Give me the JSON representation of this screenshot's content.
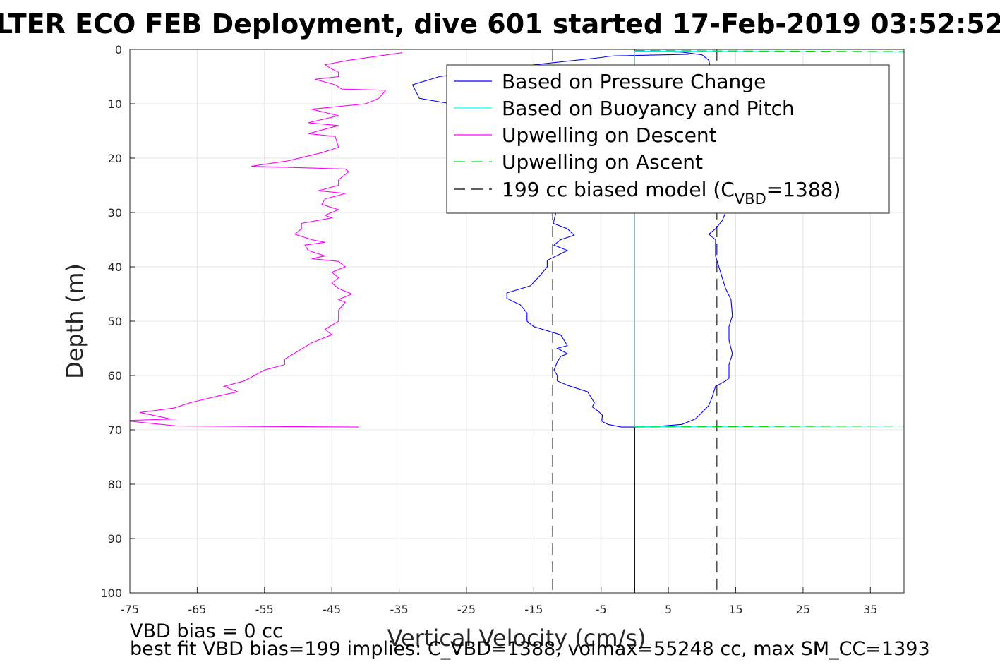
{
  "chart_data": {
    "type": "line",
    "title": "LTER ECO FEB Deployment, dive 601 started 17-Feb-2019 03:52:52",
    "xlabel": "Vertical Velocity (cm/s)",
    "ylabel": "Depth (m)",
    "xlim": [
      -75,
      40
    ],
    "ylim": [
      0,
      100
    ],
    "y_reversed": true,
    "grid": true,
    "xticks": [
      "-75",
      "-65",
      "-55",
      "-45",
      "-35",
      "-25",
      "-15",
      "-5",
      "5",
      "15",
      "25",
      "35"
    ],
    "yticks": [
      "0",
      "10",
      "20",
      "30",
      "40",
      "50",
      "60",
      "70",
      "80",
      "90",
      "100"
    ],
    "legend_position": "top-right",
    "legend": [
      {
        "label": "Based on Pressure Change",
        "color": "#0000ff",
        "style": "solid"
      },
      {
        "label": "Based on Buoyancy and Pitch",
        "color": "#00ffff",
        "style": "solid"
      },
      {
        "label": "Upwelling on Descent",
        "color": "#ff00ff",
        "style": "solid"
      },
      {
        "label": "Upwelling on Ascent",
        "color": "#00dd00",
        "style": "dashed"
      },
      {
        "label_main": "199 cc biased model (C",
        "label_sub": "VBD",
        "label_tail": "=1388)",
        "color": "#000000",
        "style": "dashed"
      }
    ],
    "series": [
      {
        "name": "Based on Pressure Change (descent)",
        "color": "#0000ff",
        "points": [
          [
            8,
            0.9
          ],
          [
            -3,
            1.2
          ],
          [
            -4,
            1.3
          ],
          [
            -5,
            1.5
          ],
          [
            -20,
            3.5
          ],
          [
            -29,
            5
          ],
          [
            -33,
            6.5
          ],
          [
            -32,
            9
          ],
          [
            -25,
            10.5
          ],
          [
            -20,
            12
          ],
          [
            -16,
            14
          ],
          [
            -14,
            17
          ],
          [
            -13,
            20
          ],
          [
            -12,
            23
          ],
          [
            -11.5,
            26
          ],
          [
            -11,
            28
          ],
          [
            -11.7,
            30
          ],
          [
            -12.1,
            32
          ],
          [
            -10,
            33
          ],
          [
            -9,
            34.2
          ],
          [
            -11,
            35
          ],
          [
            -12,
            36
          ],
          [
            -10,
            37
          ],
          [
            -13,
            38.8
          ],
          [
            -13,
            40
          ],
          [
            -14,
            41.5
          ],
          [
            -15.5,
            43.5
          ],
          [
            -19,
            44.8
          ],
          [
            -19,
            45.8
          ],
          [
            -17,
            47
          ],
          [
            -16,
            48.5
          ],
          [
            -16,
            50
          ],
          [
            -15,
            51
          ],
          [
            -11,
            52.5
          ],
          [
            -10.5,
            53.5
          ],
          [
            -10,
            54.5
          ],
          [
            -11.5,
            55
          ],
          [
            -10,
            56
          ],
          [
            -11,
            56.5
          ],
          [
            -11.5,
            57.5
          ],
          [
            -12,
            59
          ],
          [
            -11.5,
            60
          ],
          [
            -11.5,
            61
          ],
          [
            -10,
            61.8
          ],
          [
            -7,
            63
          ],
          [
            -6.5,
            64
          ],
          [
            -6,
            65
          ],
          [
            -6.3,
            65.8
          ],
          [
            -5.5,
            66.5
          ],
          [
            -4.8,
            67.3
          ],
          [
            -4.9,
            68.4
          ],
          [
            -4,
            69
          ],
          [
            -2,
            69.5
          ],
          [
            0,
            69.5
          ]
        ]
      },
      {
        "name": "Based on Pressure Change (ascent)",
        "color": "#0000ff",
        "points": [
          [
            0,
            69.5
          ],
          [
            3,
            69.4
          ],
          [
            7,
            69
          ],
          [
            9,
            68
          ],
          [
            10,
            66.8
          ],
          [
            11,
            65.5
          ],
          [
            11.5,
            64
          ],
          [
            12,
            62
          ],
          [
            13.5,
            61
          ],
          [
            14,
            60.5
          ],
          [
            14,
            58
          ],
          [
            14.5,
            56
          ],
          [
            14,
            53.5
          ],
          [
            14,
            51
          ],
          [
            14.5,
            49
          ],
          [
            14.3,
            46
          ],
          [
            13.5,
            44
          ],
          [
            13,
            42
          ],
          [
            12.5,
            40
          ],
          [
            12,
            38
          ],
          [
            12,
            35
          ],
          [
            11,
            34
          ],
          [
            12,
            33
          ],
          [
            13,
            31.5
          ],
          [
            13.5,
            30
          ],
          [
            13.5,
            26
          ],
          [
            13,
            22
          ],
          [
            12.5,
            18
          ],
          [
            12,
            14
          ],
          [
            11.5,
            10
          ],
          [
            11.5,
            5
          ],
          [
            11,
            2
          ],
          [
            10,
            1
          ],
          [
            7,
            0.5
          ],
          [
            0,
            0.3
          ]
        ]
      },
      {
        "name": "Based on Buoyancy and Pitch",
        "color": "#00ffff",
        "points": [
          [
            0,
            0.2
          ],
          [
            0,
            69.5
          ]
        ]
      },
      {
        "name": "Based on Buoyancy and Pitch (top)",
        "color": "#00ffff",
        "points": [
          [
            0,
            0.3
          ],
          [
            40,
            0.5
          ]
        ]
      },
      {
        "name": "Based on Buoyancy and Pitch (bottom)",
        "color": "#00ffff",
        "points": [
          [
            0,
            69.4
          ],
          [
            40,
            69.3
          ]
        ]
      },
      {
        "name": "Upwelling on Descent",
        "color": "#ff00ff",
        "points": [
          [
            -34.5,
            0.6
          ],
          [
            -42.5,
            2
          ],
          [
            -46,
            2.8
          ],
          [
            -45,
            3.6
          ],
          [
            -44,
            4.2
          ],
          [
            -44,
            5
          ],
          [
            -47.5,
            5.5
          ],
          [
            -44.5,
            6.5
          ],
          [
            -43.5,
            7.3
          ],
          [
            -37,
            7.5
          ],
          [
            -38,
            9
          ],
          [
            -40,
            10
          ],
          [
            -48,
            11
          ],
          [
            -44,
            12.2
          ],
          [
            -48.5,
            13.5
          ],
          [
            -44,
            14
          ],
          [
            -48.5,
            15.5
          ],
          [
            -44.5,
            16
          ],
          [
            -44,
            18
          ],
          [
            -46.5,
            19
          ],
          [
            -51.5,
            20.5
          ],
          [
            -57,
            21.5
          ],
          [
            -43,
            22
          ],
          [
            -42.5,
            22.5
          ],
          [
            -44,
            24
          ],
          [
            -44,
            25
          ],
          [
            -47,
            26
          ],
          [
            -43,
            26.5
          ],
          [
            -46,
            27.5
          ],
          [
            -46.5,
            28.5
          ],
          [
            -44,
            29.5
          ],
          [
            -46,
            30.5
          ],
          [
            -45,
            31
          ],
          [
            -49.5,
            32
          ],
          [
            -49.5,
            33
          ],
          [
            -50.5,
            34
          ],
          [
            -48,
            35
          ],
          [
            -46,
            35.5
          ],
          [
            -49,
            36
          ],
          [
            -48.5,
            37
          ],
          [
            -46,
            38
          ],
          [
            -48,
            38.5
          ],
          [
            -44,
            39
          ],
          [
            -43,
            40
          ],
          [
            -45,
            41
          ],
          [
            -44,
            42
          ],
          [
            -45,
            43
          ],
          [
            -44,
            44
          ],
          [
            -43,
            44.5
          ],
          [
            -42,
            45
          ],
          [
            -44,
            46
          ],
          [
            -43,
            46.5
          ],
          [
            -44,
            48
          ],
          [
            -44,
            50
          ],
          [
            -46,
            51.5
          ],
          [
            -45,
            52.5
          ],
          [
            -48,
            54
          ],
          [
            -50,
            55.5
          ],
          [
            -52,
            57
          ],
          [
            -52,
            58
          ],
          [
            -55,
            59
          ],
          [
            -58,
            61
          ],
          [
            -61,
            62
          ],
          [
            -59,
            63
          ],
          [
            -62,
            63.8
          ],
          [
            -66,
            65
          ],
          [
            -68.5,
            66
          ],
          [
            -73.5,
            66.8
          ],
          [
            -69,
            68
          ],
          [
            -68,
            68
          ],
          [
            -76,
            68.3
          ],
          [
            -68,
            69.3
          ],
          [
            -41,
            69.5
          ]
        ]
      },
      {
        "name": "Upwelling on Ascent (top)",
        "color": "#00dd00",
        "points": [
          [
            0,
            0.2
          ],
          [
            40,
            0.4
          ]
        ]
      },
      {
        "name": "Upwelling on Ascent (bottom)",
        "color": "#00dd00",
        "points": [
          [
            0,
            69.5
          ],
          [
            40,
            69.3
          ]
        ]
      }
    ],
    "model_lines": [
      {
        "x": -12.2,
        "color": "#333333",
        "style": "dashed"
      },
      {
        "x": 12.2,
        "color": "#333333",
        "style": "dashed"
      }
    ],
    "zero_line": {
      "x": 0,
      "color": "#000000"
    },
    "footer": [
      "VBD bias = 0 cc",
      "best fit VBD bias=199 implies: C_VBD=1388, volmax=55248 cc, max SM_CC=1393"
    ]
  }
}
